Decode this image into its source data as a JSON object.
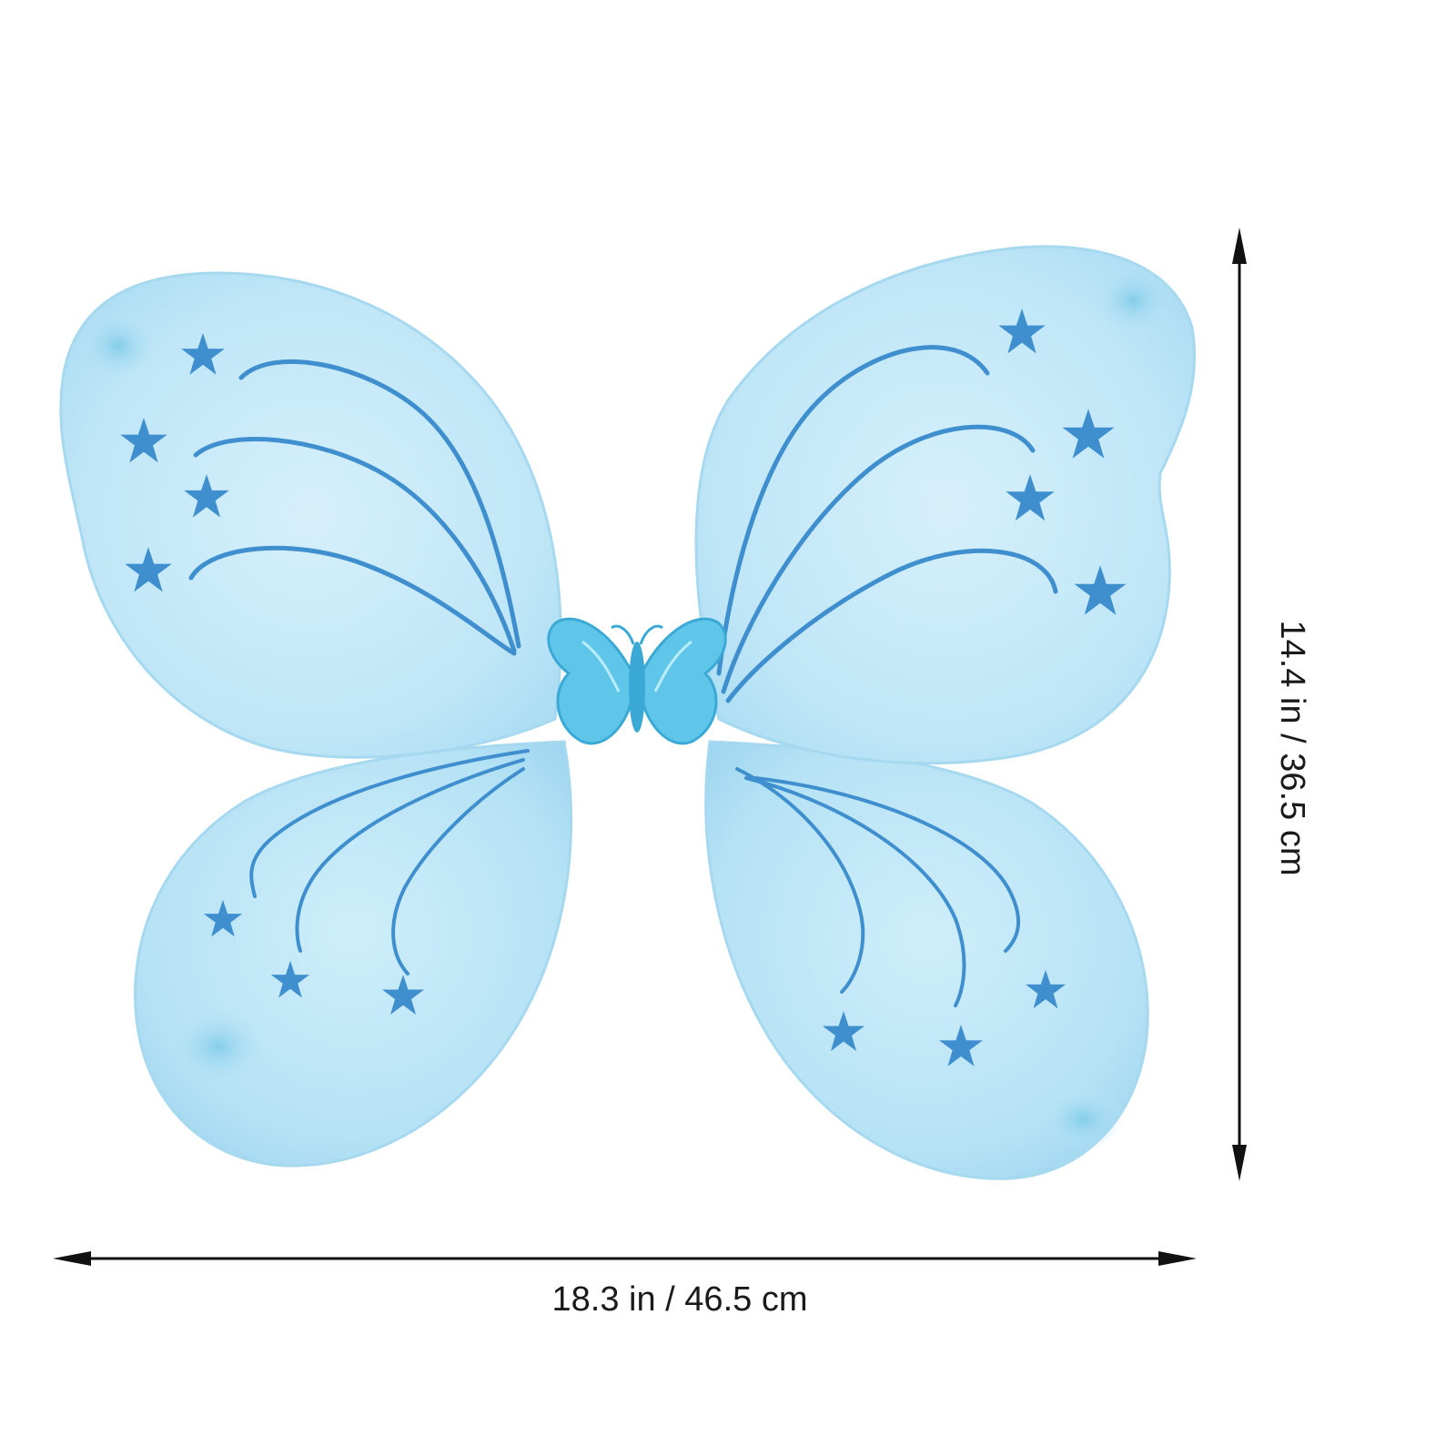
{
  "product": {
    "description": "light-blue-butterfly-fairy-wings-with-glitter-stars",
    "wing_color": "#bfe6f7",
    "wing_edge_color": "#a6d9f0",
    "glitter_color": "#3f8fcf",
    "center_ornament_color": "#5fc6ea"
  },
  "dimensions": {
    "width_label": "18.3 in / 46.5 cm",
    "height_label": "14.4 in / 36.5 cm",
    "arrow_color": "#111111"
  }
}
